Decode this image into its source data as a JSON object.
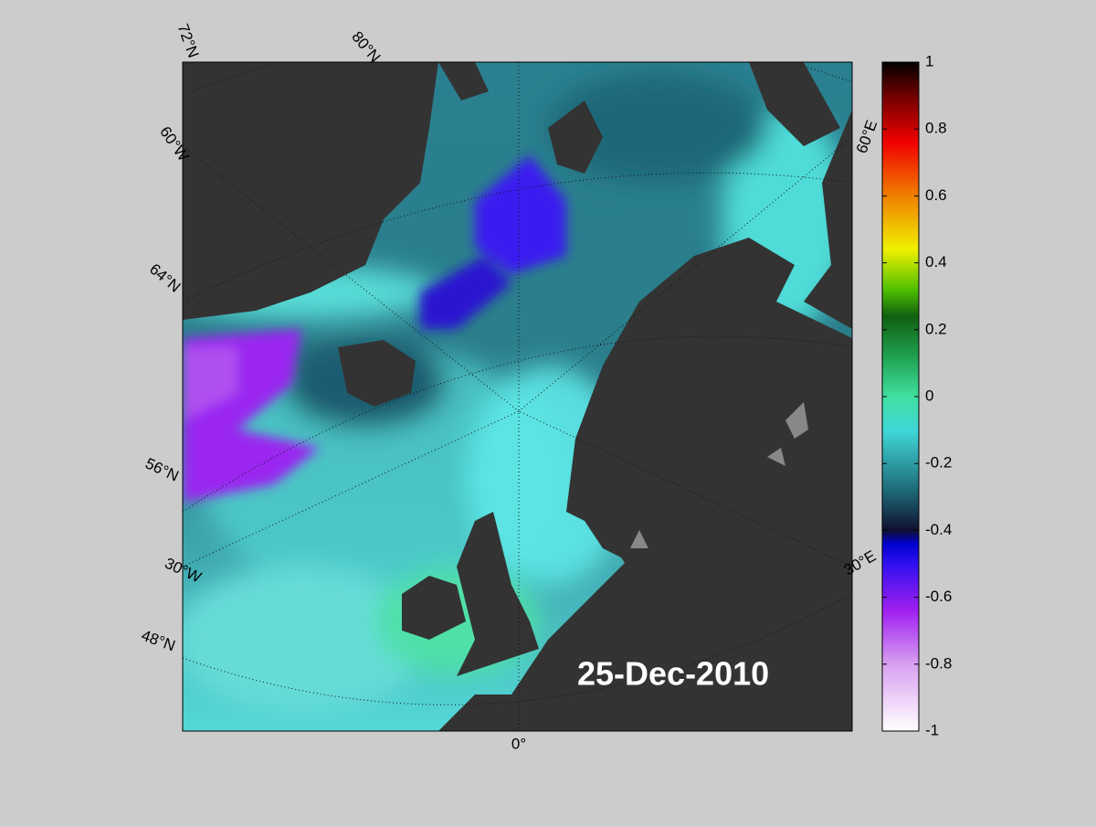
{
  "map": {
    "graticule_labels": [
      "72°N",
      "80°N",
      "60°W",
      "64°N",
      "56°N",
      "30°W",
      "48°N",
      "0°",
      "30°E",
      "60°E"
    ],
    "date_label": "25-Dec-2010",
    "colorbar": {
      "lim": [
        -1,
        1
      ],
      "ticks": [
        1,
        0.8,
        0.6,
        0.4,
        0.2,
        0,
        -0.2,
        -0.4,
        -0.6,
        -0.8,
        -1
      ]
    }
  }
}
